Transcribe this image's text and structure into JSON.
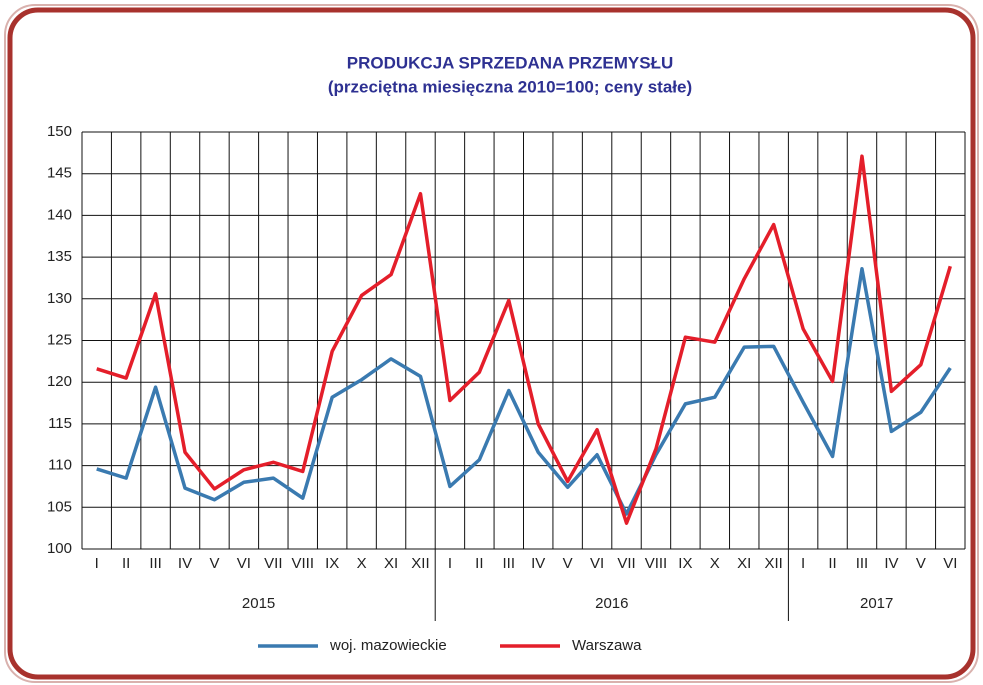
{
  "chart_data": {
    "type": "line",
    "title": "PRODUKCJA SPRZEDANA  PRZEMYSŁU",
    "subtitle": "(przeciętna miesięczna 2010=100; ceny stałe)",
    "groups": [
      {
        "label": "2015",
        "categories": [
          "I",
          "II",
          "III",
          "IV",
          "V",
          "VI",
          "VII",
          "VIII",
          "IX",
          "X",
          "XI",
          "XII"
        ]
      },
      {
        "label": "2016",
        "categories": [
          "I",
          "II",
          "III",
          "IV",
          "V",
          "VI",
          "VII",
          "VIII",
          "IX",
          "X",
          "XI",
          "XII"
        ]
      },
      {
        "label": "2017",
        "categories": [
          "I",
          "II",
          "III",
          "IV",
          "V",
          "VI"
        ]
      }
    ],
    "series": [
      {
        "name": "woj. mazowieckie",
        "color": "#3a7ab0",
        "values": [
          109.6,
          108.5,
          119.4,
          107.3,
          105.9,
          108.0,
          108.5,
          106.1,
          118.2,
          120.3,
          122.8,
          120.7,
          107.5,
          110.7,
          119.0,
          111.6,
          107.4,
          111.3,
          104.2,
          111.3,
          117.4,
          118.2,
          124.2,
          124.3,
          117.6,
          111.1,
          133.6,
          114.1,
          116.4,
          121.7
        ]
      },
      {
        "name": "Warszawa",
        "color": "#e41e2a",
        "values": [
          121.6,
          120.5,
          130.6,
          111.6,
          107.2,
          109.5,
          110.4,
          109.3,
          123.7,
          130.4,
          132.9,
          142.6,
          117.8,
          121.2,
          129.8,
          115.0,
          108.1,
          114.3,
          103.1,
          112.0,
          125.4,
          124.8,
          132.4,
          138.9,
          126.4,
          120.1,
          147.1,
          118.9,
          122.1,
          133.9
        ]
      }
    ],
    "ylim": [
      100,
      150
    ],
    "yticks": [
      100,
      105,
      110,
      115,
      120,
      125,
      130,
      135,
      140,
      145,
      150
    ],
    "grid": true,
    "legend": "bottom"
  }
}
